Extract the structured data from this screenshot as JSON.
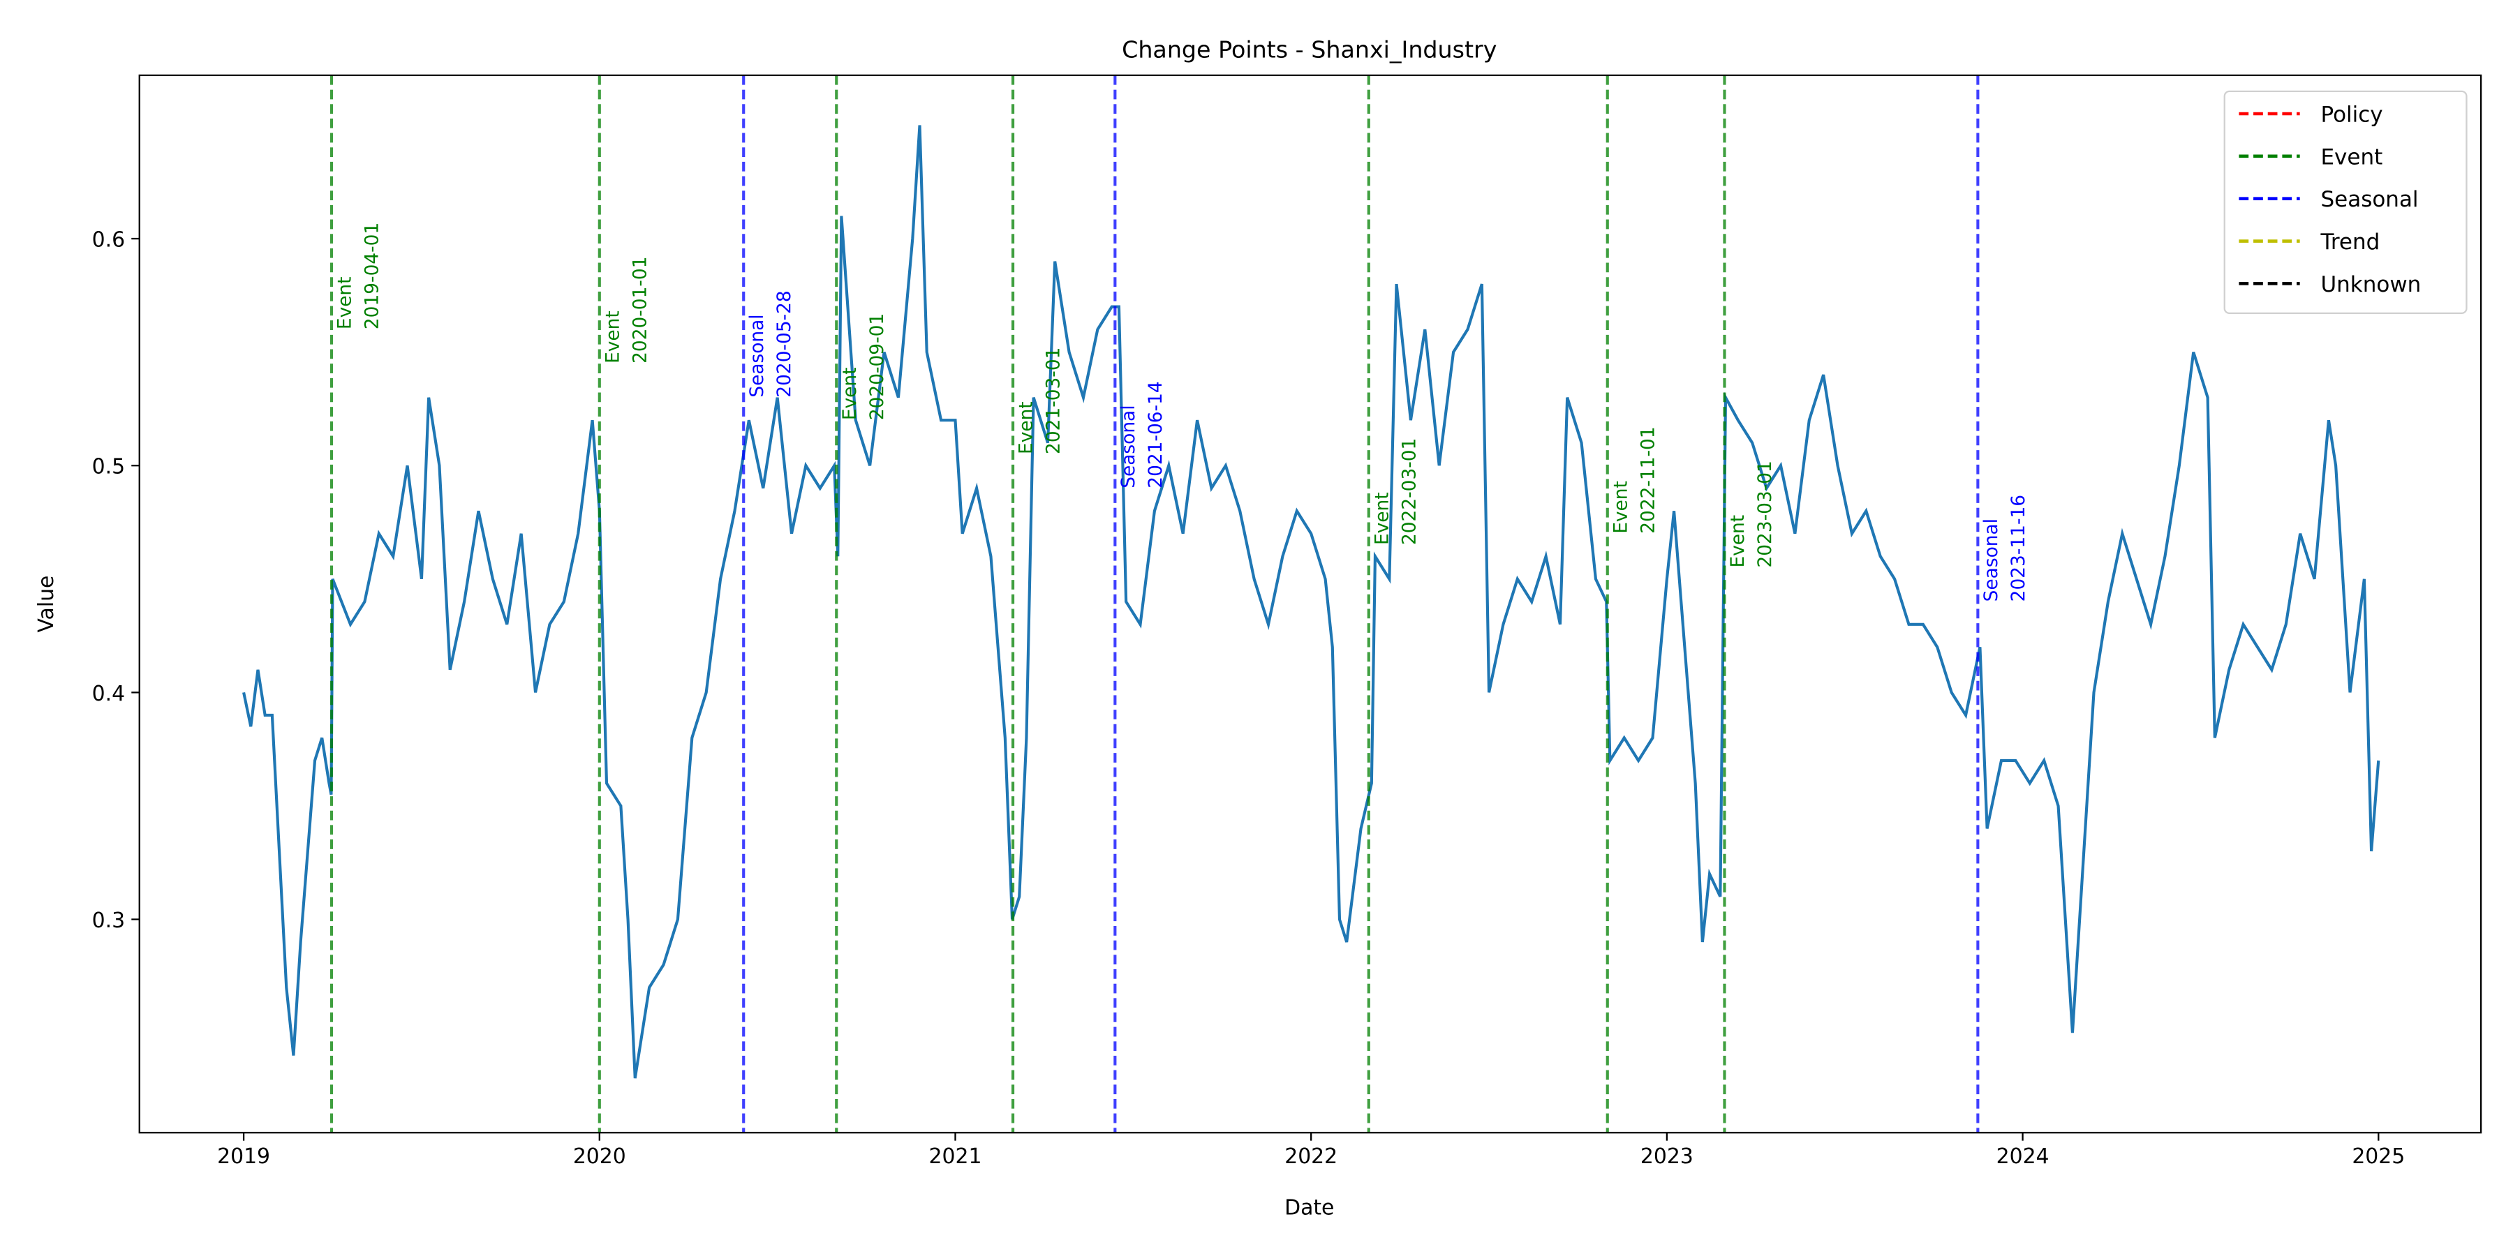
{
  "chart_data": {
    "type": "line",
    "title": "Change Points - Shanxi_Industry",
    "x_label": "Date",
    "y_label": "Value",
    "xlim": [
      2018.707,
      2025.288
    ],
    "ylim": [
      0.206,
      0.672
    ],
    "xticks": [
      2019,
      2020,
      2021,
      2022,
      2023,
      2024,
      2025
    ],
    "yticks": [
      {
        "value": 0.3,
        "label": "0.3"
      },
      {
        "value": 0.4,
        "label": "0.4"
      },
      {
        "value": 0.5,
        "label": "0.5"
      },
      {
        "value": 0.6,
        "label": "0.6"
      }
    ],
    "series": [
      {
        "color": "#1f77b4",
        "x": [
          2019.0,
          2019.02,
          2019.04,
          2019.06,
          2019.08,
          2019.1,
          2019.12,
          2019.14,
          2019.16,
          2019.18,
          2019.2,
          2019.22,
          2019.24,
          2019.246,
          2019.25,
          2019.3,
          2019.34,
          2019.38,
          2019.42,
          2019.46,
          2019.5,
          2019.52,
          2019.55,
          2019.58,
          2019.62,
          2019.66,
          2019.7,
          2019.74,
          2019.78,
          2019.82,
          2019.86,
          2019.9,
          2019.94,
          2019.98,
          2020.0,
          2020.02,
          2020.06,
          2020.08,
          2020.1,
          2020.14,
          2020.18,
          2020.22,
          2020.26,
          2020.3,
          2020.34,
          2020.38,
          2020.42,
          2020.46,
          2020.5,
          2020.54,
          2020.58,
          2020.62,
          2020.66,
          2020.67,
          2020.68,
          2020.72,
          2020.76,
          2020.8,
          2020.84,
          2020.88,
          2020.9,
          2020.92,
          2020.96,
          2021.0,
          2021.02,
          2021.06,
          2021.1,
          2021.14,
          2021.16,
          2021.18,
          2021.2,
          2021.22,
          2021.26,
          2021.28,
          2021.32,
          2021.36,
          2021.4,
          2021.44,
          2021.46,
          2021.48,
          2021.52,
          2021.56,
          2021.6,
          2021.64,
          2021.68,
          2021.72,
          2021.76,
          2021.8,
          2021.84,
          2021.88,
          2021.92,
          2021.96,
          2022.0,
          2022.04,
          2022.06,
          2022.08,
          2022.1,
          2022.14,
          2022.17,
          2022.18,
          2022.22,
          2022.24,
          2022.28,
          2022.32,
          2022.36,
          2022.4,
          2022.44,
          2022.48,
          2022.5,
          2022.54,
          2022.58,
          2022.62,
          2022.66,
          2022.7,
          2022.72,
          2022.76,
          2022.8,
          2022.83,
          2022.84,
          2022.88,
          2022.92,
          2022.96,
          2023.0,
          2023.02,
          2023.06,
          2023.08,
          2023.1,
          2023.12,
          2023.15,
          2023.165,
          2023.2,
          2023.24,
          2023.28,
          2023.32,
          2023.36,
          2023.4,
          2023.44,
          2023.48,
          2023.52,
          2023.56,
          2023.6,
          2023.64,
          2023.68,
          2023.72,
          2023.76,
          2023.8,
          2023.84,
          2023.88,
          2023.9,
          2023.94,
          2023.98,
          2024.02,
          2024.06,
          2024.1,
          2024.12,
          2024.14,
          2024.16,
          2024.2,
          2024.24,
          2024.28,
          2024.32,
          2024.36,
          2024.4,
          2024.44,
          2024.48,
          2024.52,
          2024.54,
          2024.58,
          2024.62,
          2024.66,
          2024.7,
          2024.74,
          2024.78,
          2024.82,
          2024.86,
          2024.88,
          2024.92,
          2024.96,
          2024.98,
          2025.0
        ],
        "values": [
          0.4,
          0.385,
          0.41,
          0.39,
          0.39,
          0.33,
          0.27,
          0.24,
          0.29,
          0.33,
          0.37,
          0.38,
          0.36,
          0.355,
          0.45,
          0.43,
          0.44,
          0.47,
          0.46,
          0.5,
          0.45,
          0.53,
          0.5,
          0.41,
          0.44,
          0.48,
          0.45,
          0.43,
          0.47,
          0.4,
          0.43,
          0.44,
          0.47,
          0.52,
          0.48,
          0.36,
          0.35,
          0.3,
          0.23,
          0.27,
          0.28,
          0.3,
          0.38,
          0.4,
          0.45,
          0.48,
          0.52,
          0.49,
          0.53,
          0.47,
          0.5,
          0.49,
          0.5,
          0.46,
          0.61,
          0.52,
          0.5,
          0.55,
          0.53,
          0.6,
          0.65,
          0.55,
          0.52,
          0.52,
          0.47,
          0.49,
          0.46,
          0.38,
          0.3,
          0.31,
          0.38,
          0.53,
          0.51,
          0.59,
          0.55,
          0.53,
          0.56,
          0.57,
          0.57,
          0.44,
          0.43,
          0.48,
          0.5,
          0.47,
          0.52,
          0.49,
          0.5,
          0.48,
          0.45,
          0.43,
          0.46,
          0.48,
          0.47,
          0.45,
          0.42,
          0.3,
          0.29,
          0.34,
          0.36,
          0.46,
          0.45,
          0.58,
          0.52,
          0.56,
          0.5,
          0.55,
          0.56,
          0.58,
          0.4,
          0.43,
          0.45,
          0.44,
          0.46,
          0.43,
          0.53,
          0.51,
          0.45,
          0.44,
          0.37,
          0.38,
          0.37,
          0.38,
          0.45,
          0.48,
          0.4,
          0.36,
          0.29,
          0.32,
          0.31,
          0.53,
          0.52,
          0.51,
          0.49,
          0.5,
          0.47,
          0.52,
          0.54,
          0.5,
          0.47,
          0.48,
          0.46,
          0.45,
          0.43,
          0.43,
          0.42,
          0.4,
          0.39,
          0.42,
          0.34,
          0.37,
          0.37,
          0.36,
          0.37,
          0.35,
          0.3,
          0.25,
          0.3,
          0.4,
          0.44,
          0.47,
          0.45,
          0.43,
          0.46,
          0.5,
          0.55,
          0.53,
          0.38,
          0.41,
          0.43,
          0.42,
          0.41,
          0.43,
          0.47,
          0.45,
          0.52,
          0.5,
          0.4,
          0.45,
          0.33,
          0.37
        ]
      }
    ],
    "legend": [
      {
        "name": "Policy",
        "color": "#ff0000"
      },
      {
        "name": "Event",
        "color": "#008000"
      },
      {
        "name": "Seasonal",
        "color": "#0000ff"
      },
      {
        "name": "Trend",
        "color": "#bfbf00"
      },
      {
        "name": "Unknown",
        "color": "#000000"
      }
    ],
    "change_points": [
      {
        "type": "Event",
        "date": "2019-04-01",
        "x": 2019.247,
        "y": 0.56
      },
      {
        "type": "Event",
        "date": "2020-01-01",
        "x": 2020.0,
        "y": 0.545
      },
      {
        "type": "Seasonal",
        "date": "2020-05-28",
        "x": 2020.405,
        "y": 0.53
      },
      {
        "type": "Event",
        "date": "2020-09-01",
        "x": 2020.666,
        "y": 0.52
      },
      {
        "type": "Event",
        "date": "2021-03-01",
        "x": 2021.162,
        "y": 0.505
      },
      {
        "type": "Seasonal",
        "date": "2021-06-14",
        "x": 2021.449,
        "y": 0.49
      },
      {
        "type": "Event",
        "date": "2022-03-01",
        "x": 2022.162,
        "y": 0.465
      },
      {
        "type": "Event",
        "date": "2022-11-01",
        "x": 2022.833,
        "y": 0.47
      },
      {
        "type": "Event",
        "date": "2023-03-01",
        "x": 2023.162,
        "y": 0.455
      },
      {
        "type": "Seasonal",
        "date": "2023-11-16",
        "x": 2023.874,
        "y": 0.44
      }
    ]
  }
}
